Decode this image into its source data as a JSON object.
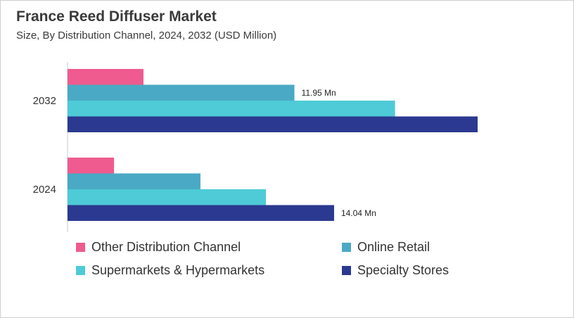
{
  "chart_data": {
    "type": "bar",
    "orientation": "horizontal",
    "title": "France Reed Diffuser Market",
    "subtitle": "Size, By Distribution Channel, 2024, 2032 (USD Million)",
    "categories": [
      "2032",
      "2024"
    ],
    "series": [
      {
        "name": "Other Distribution Channel",
        "color": "#ef5b8e",
        "values": [
          4.0,
          2.45
        ]
      },
      {
        "name": "Online Retail",
        "color": "#4aa9c4",
        "values": [
          11.95,
          7.0
        ]
      },
      {
        "name": "Supermarkets & Hypermarkets",
        "color": "#4ecbd6",
        "values": [
          17.25,
          10.45
        ]
      },
      {
        "name": "Specialty Stores",
        "color": "#2b3990",
        "values": [
          21.6,
          14.04
        ]
      }
    ],
    "data_labels": [
      {
        "category": "2032",
        "series": "Online Retail",
        "text": "11.95 Mn"
      },
      {
        "category": "2024",
        "series": "Specialty Stores",
        "text": "14.04 Mn"
      }
    ],
    "xlim": [
      0,
      22
    ],
    "grid": false,
    "legend_position": "bottom"
  }
}
